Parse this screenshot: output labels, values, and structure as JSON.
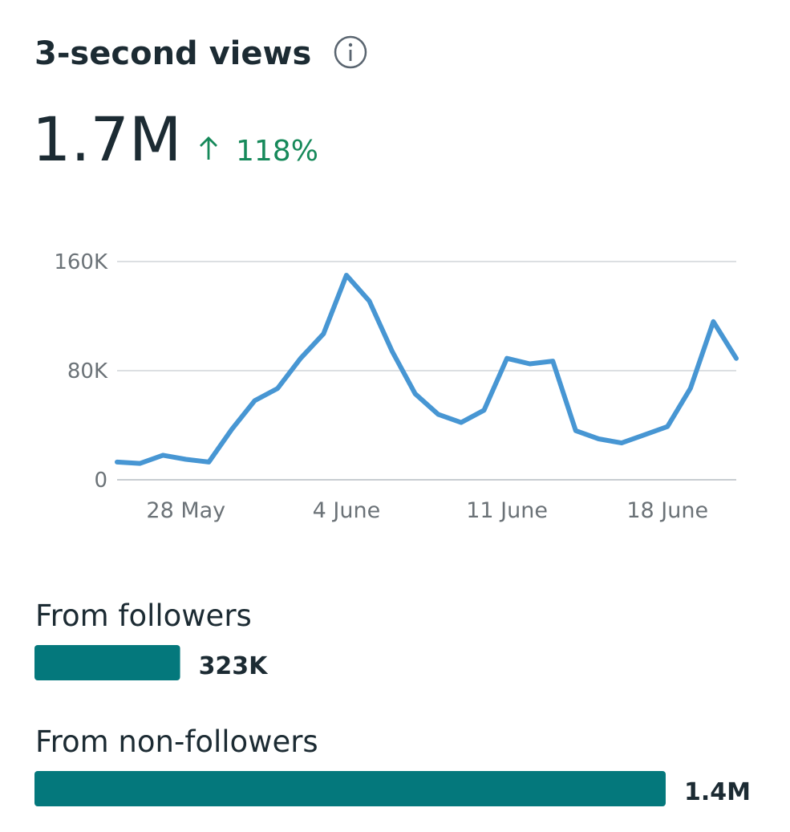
{
  "header": {
    "title": "3-second views",
    "total": "1.7M",
    "change": "118%"
  },
  "chart_data": {
    "type": "line",
    "categories": [
      null,
      null,
      null,
      "28 May",
      null,
      null,
      null,
      null,
      null,
      null,
      "4 June",
      null,
      null,
      null,
      null,
      null,
      null,
      "11 June",
      null,
      null,
      null,
      null,
      null,
      null,
      "18 June",
      null,
      null,
      null
    ],
    "values": [
      13000,
      12000,
      18000,
      15000,
      13000,
      37000,
      58000,
      67000,
      89000,
      107000,
      150000,
      131000,
      94000,
      63000,
      48000,
      42000,
      51000,
      89000,
      85000,
      87000,
      36000,
      30000,
      27000,
      33000,
      39000,
      67000,
      116000,
      89000
    ],
    "color": "#4796d3",
    "ylim": [
      0,
      160000
    ],
    "yticks": [
      0,
      {
        "value": 80000,
        "label": "80K"
      },
      {
        "value": 160000,
        "label": "160K"
      }
    ],
    "grid": true
  },
  "breakdown": {
    "color": "#04787c",
    "items": [
      {
        "label": "From followers",
        "value": 323000,
        "value_label": "323K"
      },
      {
        "label": "From non-followers",
        "value": 1400000,
        "value_label": "1.4M"
      }
    ]
  }
}
